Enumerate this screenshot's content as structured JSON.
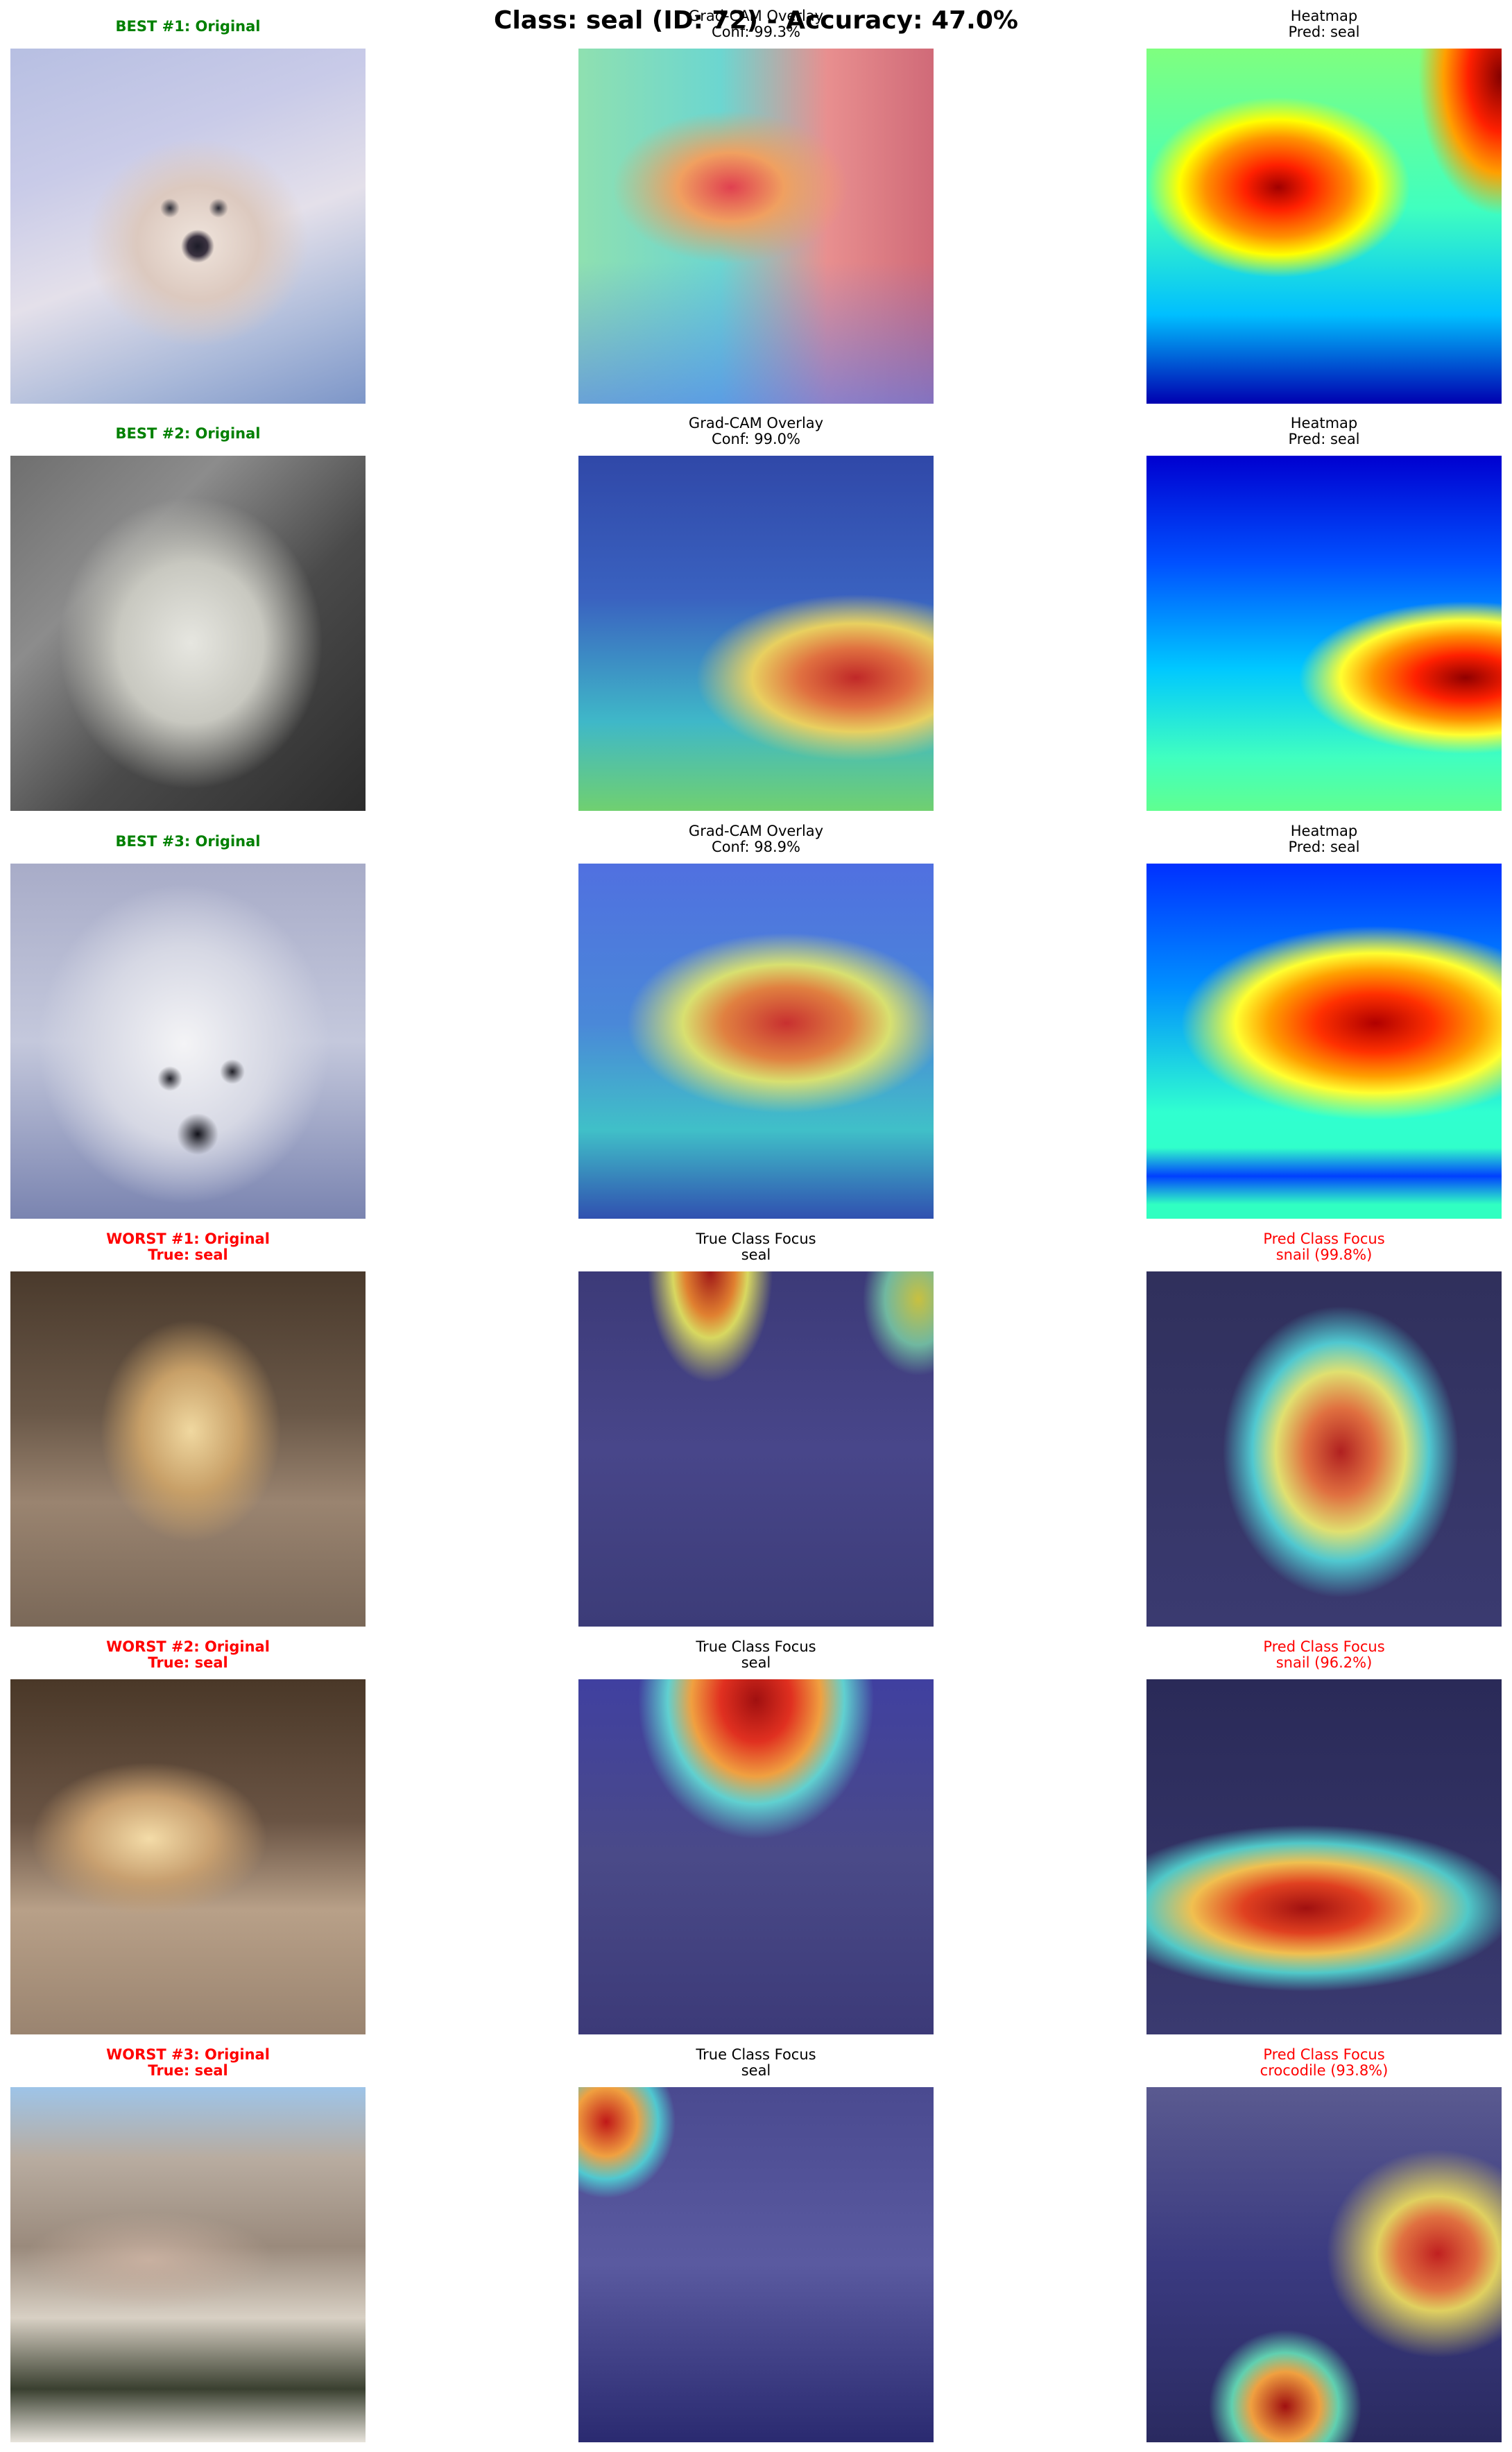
{
  "suptitle": "Class: seal (ID: 72) - Accuracy: 47.0%",
  "colors": {
    "best": "#008000",
    "worst": "#ff0000",
    "neutral": "#000000"
  },
  "rows": [
    {
      "original": {
        "line1": "BEST #1: Original",
        "line2": ""
      },
      "overlay": {
        "line1": "Grad-CAM Overlay",
        "line2": "Conf: 99.3%"
      },
      "heatmap": {
        "line1": "Heatmap",
        "line2": "Pred: seal"
      }
    },
    {
      "original": {
        "line1": "BEST #2: Original",
        "line2": ""
      },
      "overlay": {
        "line1": "Grad-CAM Overlay",
        "line2": "Conf: 99.0%"
      },
      "heatmap": {
        "line1": "Heatmap",
        "line2": "Pred: seal"
      }
    },
    {
      "original": {
        "line1": "BEST #3: Original",
        "line2": ""
      },
      "overlay": {
        "line1": "Grad-CAM Overlay",
        "line2": "Conf: 98.9%"
      },
      "heatmap": {
        "line1": "Heatmap",
        "line2": "Pred: seal"
      }
    },
    {
      "original": {
        "line1": "WORST #1: Original",
        "line2": "True: seal"
      },
      "overlay": {
        "line1": "True Class Focus",
        "line2": "seal"
      },
      "heatmap": {
        "line1": "Pred Class Focus",
        "line2": "snail (99.8%)"
      }
    },
    {
      "original": {
        "line1": "WORST #2: Original",
        "line2": "True: seal"
      },
      "overlay": {
        "line1": "True Class Focus",
        "line2": "seal"
      },
      "heatmap": {
        "line1": "Pred Class Focus",
        "line2": "snail (96.2%)"
      }
    },
    {
      "original": {
        "line1": "WORST #3: Original",
        "line2": "True: seal"
      },
      "overlay": {
        "line1": "True Class Focus",
        "line2": "seal"
      },
      "heatmap": {
        "line1": "Pred Class Focus",
        "line2": "crocodile (93.8%)"
      }
    }
  ]
}
